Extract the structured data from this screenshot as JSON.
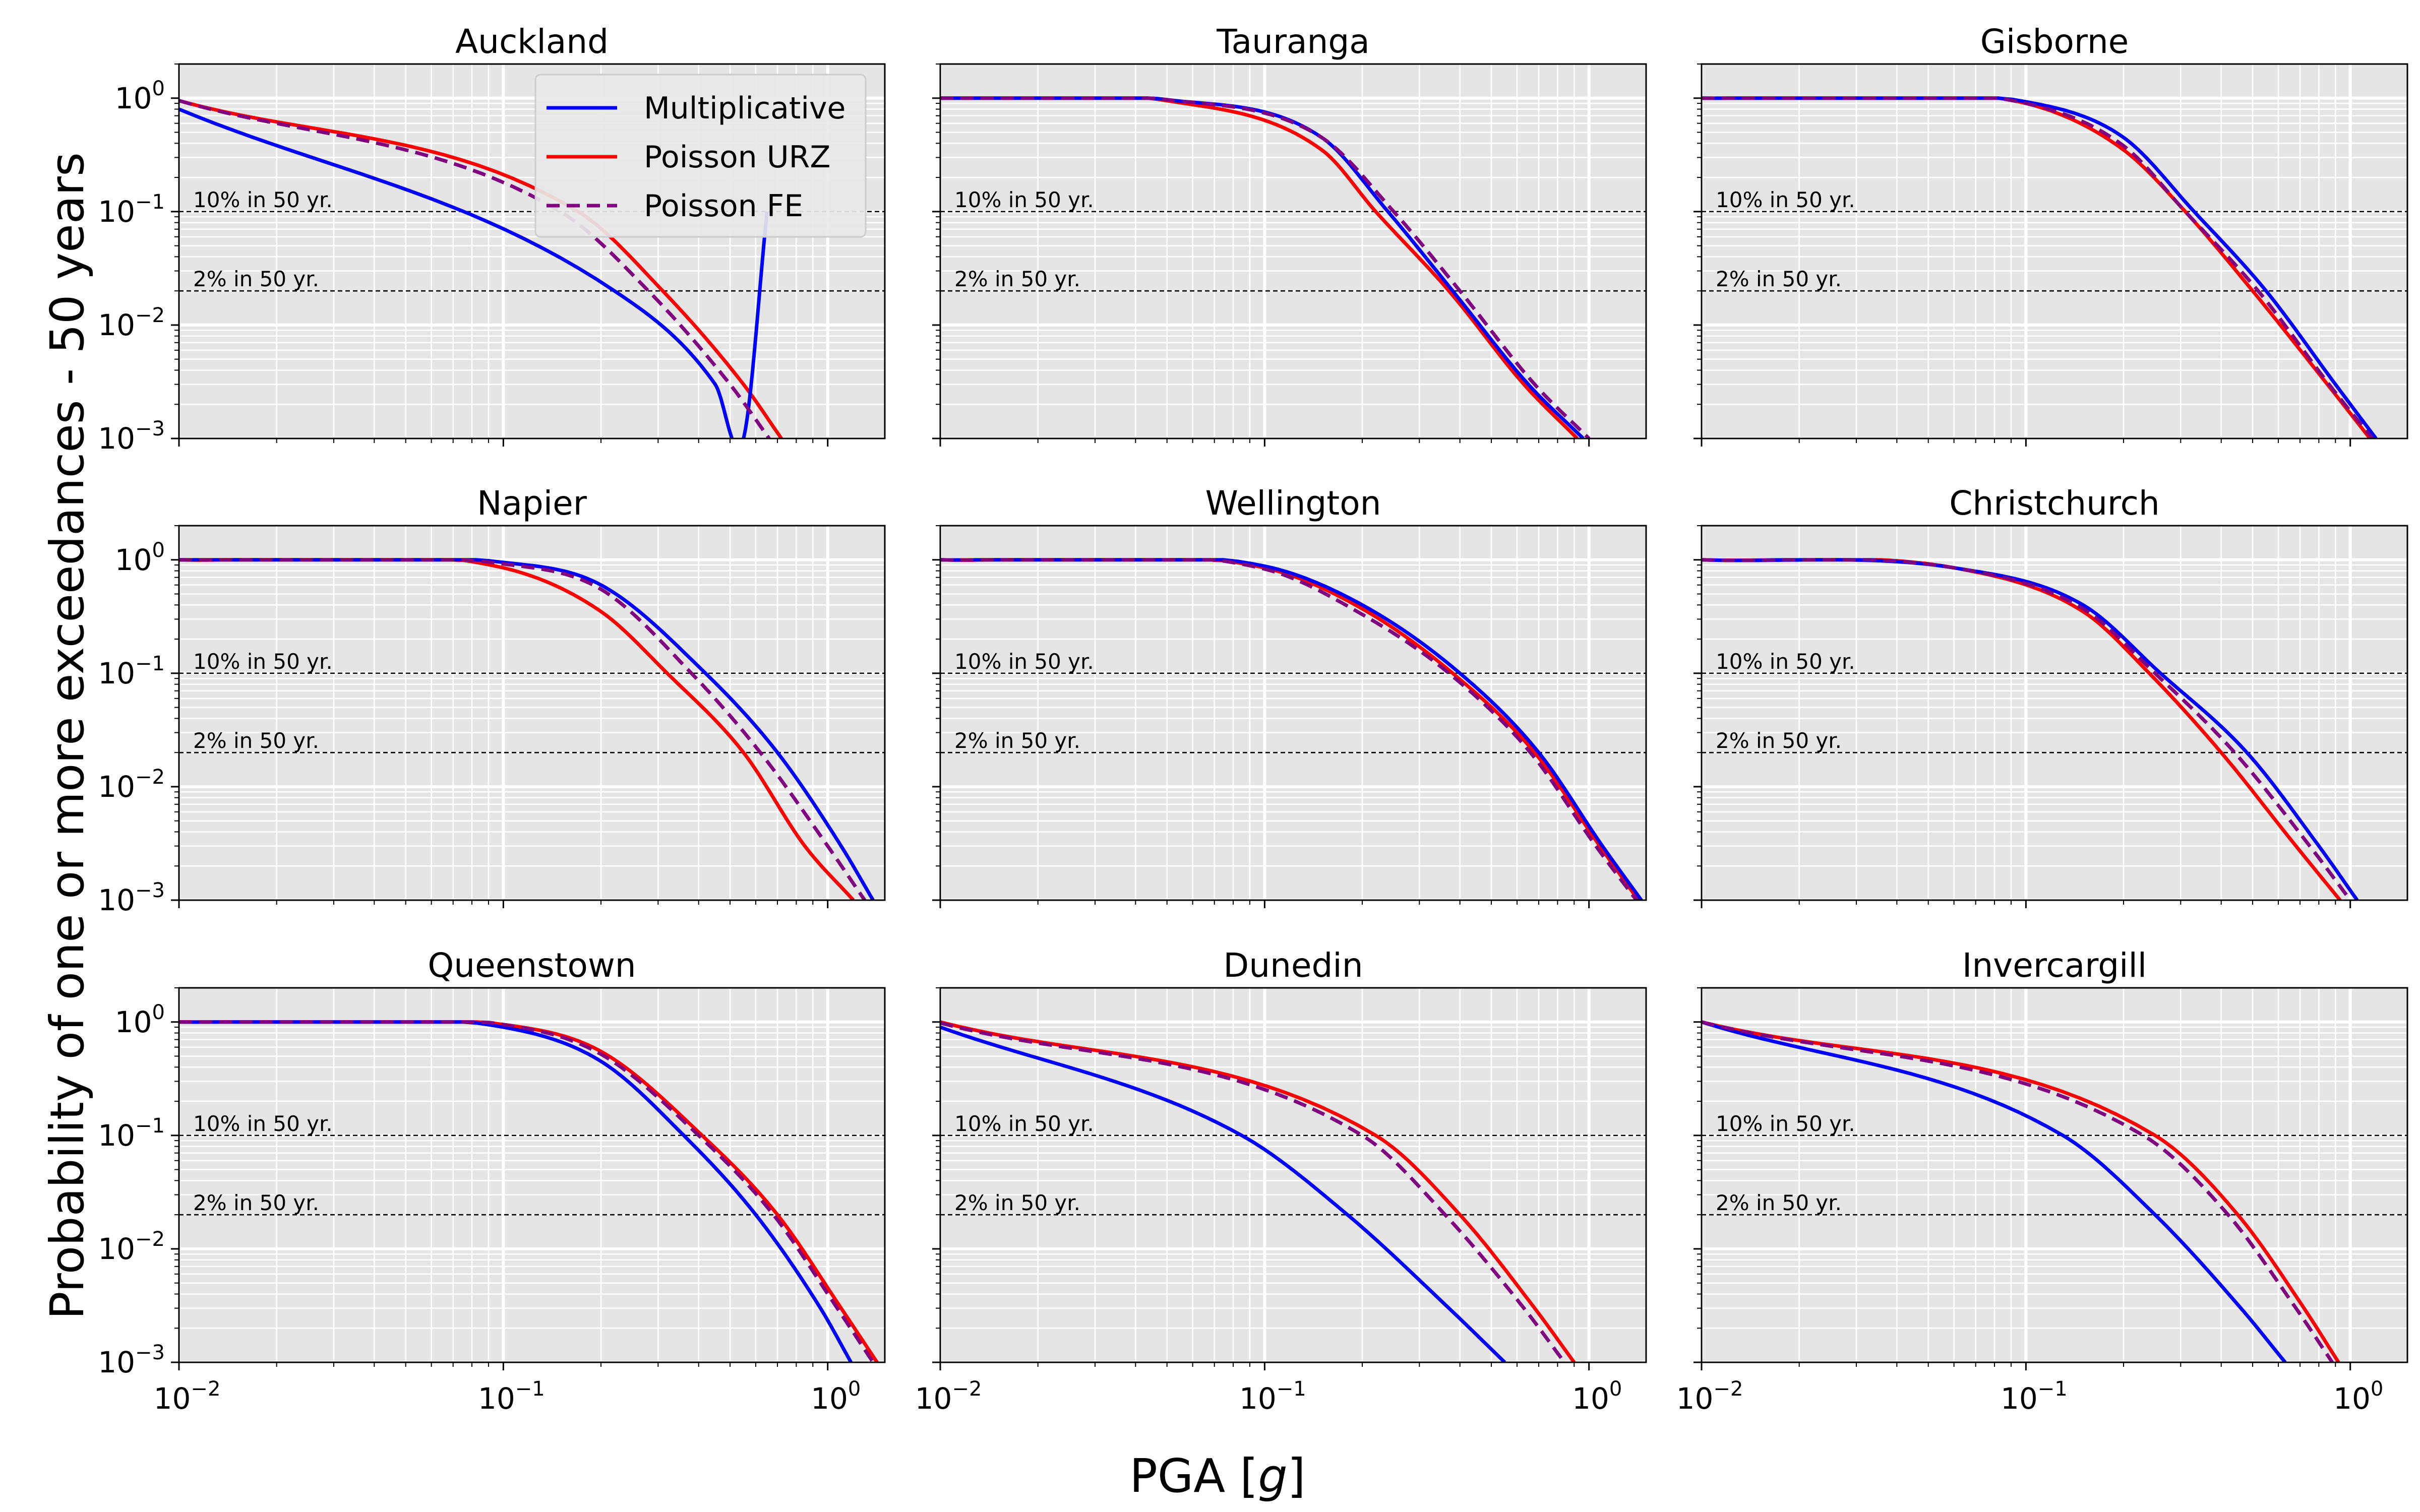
{
  "chart_data": {
    "type": "line",
    "xlabel": "PGA [g]",
    "ylabel": "Probability of one or more exceedances - 50 years",
    "xscale": "log",
    "yscale": "log",
    "xlim": [
      0.01,
      1.5
    ],
    "ylim": [
      0.001,
      2.0
    ],
    "x_tick_labels": [
      "10",
      "10",
      "10"
    ],
    "x_tick_exponents": [
      "−2",
      "−1",
      "0"
    ],
    "y_tick_labels": [
      "10",
      "10",
      "10",
      "10"
    ],
    "y_tick_exponents": [
      "0",
      "−1",
      "−2",
      "−3"
    ],
    "grid": true,
    "reference_lines": [
      {
        "label": "10% in 50 yr.",
        "y": 0.1
      },
      {
        "label": "2% in 50 yr.",
        "y": 0.02
      }
    ],
    "legend": {
      "position": "upper-right of first panel",
      "entries": [
        {
          "name": "Multiplicative",
          "color": "#0000ff",
          "style": "solid"
        },
        {
          "name": "Poisson URZ",
          "color": "#ff0000",
          "style": "solid"
        },
        {
          "name": "Poisson FE",
          "color": "#800080",
          "style": "dashed"
        }
      ]
    },
    "panels": [
      {
        "title": "Auckland",
        "series": [
          {
            "name": "Multiplicative",
            "points": [
              [
                0.01,
                0.8
              ],
              [
                0.65,
                0.1
              ],
              [
                0.22,
                0.02
              ],
              [
                0.45,
                0.003
              ],
              [
                0.55,
                0.001
              ]
            ]
          },
          {
            "name": "Poisson URZ",
            "points": [
              [
                0.01,
                0.95
              ],
              [
                0.17,
                0.1
              ],
              [
                0.31,
                0.02
              ],
              [
                0.55,
                0.003
              ],
              [
                0.72,
                0.001
              ]
            ]
          },
          {
            "name": "Poisson FE",
            "points": [
              [
                0.01,
                0.95
              ],
              [
                0.15,
                0.1
              ],
              [
                0.28,
                0.02
              ],
              [
                0.5,
                0.003
              ],
              [
                0.66,
                0.001
              ]
            ]
          }
        ]
      },
      {
        "title": "Tauranga",
        "series": [
          {
            "name": "Multiplicative",
            "points": [
              [
                0.01,
                1.0
              ],
              [
                0.05,
                0.97
              ],
              [
                0.15,
                0.45
              ],
              [
                0.24,
                0.1
              ],
              [
                0.38,
                0.02
              ],
              [
                0.65,
                0.003
              ],
              [
                0.96,
                0.001
              ]
            ]
          },
          {
            "name": "Poisson URZ",
            "points": [
              [
                0.01,
                1.0
              ],
              [
                0.05,
                0.95
              ],
              [
                0.15,
                0.35
              ],
              [
                0.22,
                0.1
              ],
              [
                0.37,
                0.02
              ],
              [
                0.63,
                0.003
              ],
              [
                0.92,
                0.001
              ]
            ]
          },
          {
            "name": "Poisson FE",
            "points": [
              [
                0.01,
                1.0
              ],
              [
                0.05,
                0.97
              ],
              [
                0.15,
                0.45
              ],
              [
                0.25,
                0.1
              ],
              [
                0.4,
                0.02
              ],
              [
                0.68,
                0.003
              ],
              [
                1.0,
                0.001
              ]
            ]
          }
        ]
      },
      {
        "title": "Gisborne",
        "series": [
          {
            "name": "Multiplicative",
            "points": [
              [
                0.01,
                1.0
              ],
              [
                0.1,
                0.93
              ],
              [
                0.2,
                0.45
              ],
              [
                0.33,
                0.1
              ],
              [
                0.55,
                0.02
              ],
              [
                0.9,
                0.003
              ],
              [
                1.2,
                0.001
              ]
            ]
          },
          {
            "name": "Poisson URZ",
            "points": [
              [
                0.01,
                1.0
              ],
              [
                0.1,
                0.9
              ],
              [
                0.2,
                0.35
              ],
              [
                0.31,
                0.1
              ],
              [
                0.5,
                0.02
              ],
              [
                0.85,
                0.003
              ],
              [
                1.15,
                0.001
              ]
            ]
          },
          {
            "name": "Poisson FE",
            "points": [
              [
                0.01,
                1.0
              ],
              [
                0.1,
                0.9
              ],
              [
                0.2,
                0.38
              ],
              [
                0.31,
                0.1
              ],
              [
                0.52,
                0.02
              ],
              [
                0.86,
                0.003
              ],
              [
                1.17,
                0.001
              ]
            ]
          }
        ]
      },
      {
        "title": "Napier",
        "series": [
          {
            "name": "Multiplicative",
            "points": [
              [
                0.01,
                1.0
              ],
              [
                0.1,
                0.95
              ],
              [
                0.2,
                0.6
              ],
              [
                0.42,
                0.1
              ],
              [
                0.7,
                0.02
              ],
              [
                1.1,
                0.003
              ],
              [
                1.38,
                0.001
              ]
            ]
          },
          {
            "name": "Poisson URZ",
            "points": [
              [
                0.01,
                1.0
              ],
              [
                0.1,
                0.85
              ],
              [
                0.2,
                0.35
              ],
              [
                0.32,
                0.1
              ],
              [
                0.55,
                0.02
              ],
              [
                0.85,
                0.003
              ],
              [
                1.2,
                0.001
              ]
            ]
          },
          {
            "name": "Poisson FE",
            "points": [
              [
                0.01,
                1.0
              ],
              [
                0.1,
                0.92
              ],
              [
                0.2,
                0.55
              ],
              [
                0.38,
                0.1
              ],
              [
                0.62,
                0.02
              ],
              [
                1.0,
                0.003
              ],
              [
                1.3,
                0.001
              ]
            ]
          }
        ]
      },
      {
        "title": "Wellington",
        "series": [
          {
            "name": "Multiplicative",
            "points": [
              [
                0.01,
                1.0
              ],
              [
                0.1,
                0.88
              ],
              [
                0.2,
                0.4
              ],
              [
                0.4,
                0.1
              ],
              [
                0.7,
                0.02
              ],
              [
                1.1,
                0.003
              ],
              [
                1.45,
                0.001
              ]
            ]
          },
          {
            "name": "Poisson URZ",
            "points": [
              [
                0.01,
                1.0
              ],
              [
                0.1,
                0.85
              ],
              [
                0.2,
                0.37
              ],
              [
                0.38,
                0.1
              ],
              [
                0.68,
                0.02
              ],
              [
                1.08,
                0.003
              ],
              [
                1.42,
                0.001
              ]
            ]
          },
          {
            "name": "Poisson FE",
            "points": [
              [
                0.01,
                1.0
              ],
              [
                0.1,
                0.83
              ],
              [
                0.2,
                0.33
              ],
              [
                0.37,
                0.1
              ],
              [
                0.66,
                0.02
              ],
              [
                1.05,
                0.003
              ],
              [
                1.4,
                0.001
              ]
            ]
          }
        ]
      },
      {
        "title": "Christchurch",
        "series": [
          {
            "name": "Multiplicative",
            "points": [
              [
                0.01,
                1.0
              ],
              [
                0.06,
                0.85
              ],
              [
                0.15,
                0.4
              ],
              [
                0.26,
                0.1
              ],
              [
                0.48,
                0.02
              ],
              [
                0.8,
                0.003
              ],
              [
                1.05,
                0.001
              ]
            ]
          },
          {
            "name": "Poisson URZ",
            "points": [
              [
                0.01,
                1.0
              ],
              [
                0.06,
                0.85
              ],
              [
                0.15,
                0.35
              ],
              [
                0.24,
                0.1
              ],
              [
                0.4,
                0.02
              ],
              [
                0.68,
                0.003
              ],
              [
                0.93,
                0.001
              ]
            ]
          },
          {
            "name": "Poisson FE",
            "points": [
              [
                0.01,
                1.0
              ],
              [
                0.06,
                0.85
              ],
              [
                0.15,
                0.37
              ],
              [
                0.25,
                0.1
              ],
              [
                0.44,
                0.02
              ],
              [
                0.75,
                0.003
              ],
              [
                1.0,
                0.001
              ]
            ]
          }
        ]
      },
      {
        "title": "Queenstown",
        "series": [
          {
            "name": "Multiplicative",
            "points": [
              [
                0.01,
                1.0
              ],
              [
                0.1,
                0.9
              ],
              [
                0.2,
                0.45
              ],
              [
                0.36,
                0.1
              ],
              [
                0.6,
                0.02
              ],
              [
                0.95,
                0.003
              ],
              [
                1.18,
                0.001
              ]
            ]
          },
          {
            "name": "Poisson URZ",
            "points": [
              [
                0.01,
                1.0
              ],
              [
                0.1,
                0.95
              ],
              [
                0.2,
                0.55
              ],
              [
                0.41,
                0.1
              ],
              [
                0.7,
                0.02
              ],
              [
                1.1,
                0.003
              ],
              [
                1.42,
                0.001
              ]
            ]
          },
          {
            "name": "Poisson FE",
            "points": [
              [
                0.01,
                1.0
              ],
              [
                0.1,
                0.95
              ],
              [
                0.2,
                0.52
              ],
              [
                0.4,
                0.1
              ],
              [
                0.68,
                0.02
              ],
              [
                1.07,
                0.003
              ],
              [
                1.38,
                0.001
              ]
            ]
          }
        ]
      },
      {
        "title": "Dunedin",
        "series": [
          {
            "name": "Multiplicative",
            "points": [
              [
                0.01,
                0.9
              ],
              [
                0.085,
                0.1
              ],
              [
                0.18,
                0.02
              ],
              [
                0.37,
                0.003
              ],
              [
                0.55,
                0.001
              ]
            ]
          },
          {
            "name": "Poisson URZ",
            "points": [
              [
                0.01,
                1.0
              ],
              [
                0.22,
                0.1
              ],
              [
                0.4,
                0.02
              ],
              [
                0.68,
                0.003
              ],
              [
                0.9,
                0.001
              ]
            ]
          },
          {
            "name": "Poisson FE",
            "points": [
              [
                0.01,
                0.98
              ],
              [
                0.2,
                0.1
              ],
              [
                0.36,
                0.02
              ],
              [
                0.63,
                0.003
              ],
              [
                0.84,
                0.001
              ]
            ]
          }
        ]
      },
      {
        "title": "Invercargill",
        "series": [
          {
            "name": "Multiplicative",
            "points": [
              [
                0.01,
                1.0
              ],
              [
                0.13,
                0.1
              ],
              [
                0.25,
                0.02
              ],
              [
                0.46,
                0.003
              ],
              [
                0.63,
                0.001
              ]
            ]
          },
          {
            "name": "Poisson URZ",
            "points": [
              [
                0.01,
                1.0
              ],
              [
                0.25,
                0.1
              ],
              [
                0.45,
                0.02
              ],
              [
                0.72,
                0.003
              ],
              [
                0.92,
                0.001
              ]
            ]
          },
          {
            "name": "Poisson FE",
            "points": [
              [
                0.01,
                1.0
              ],
              [
                0.23,
                0.1
              ],
              [
                0.42,
                0.02
              ],
              [
                0.68,
                0.003
              ],
              [
                0.88,
                0.001
              ]
            ]
          }
        ]
      }
    ]
  }
}
